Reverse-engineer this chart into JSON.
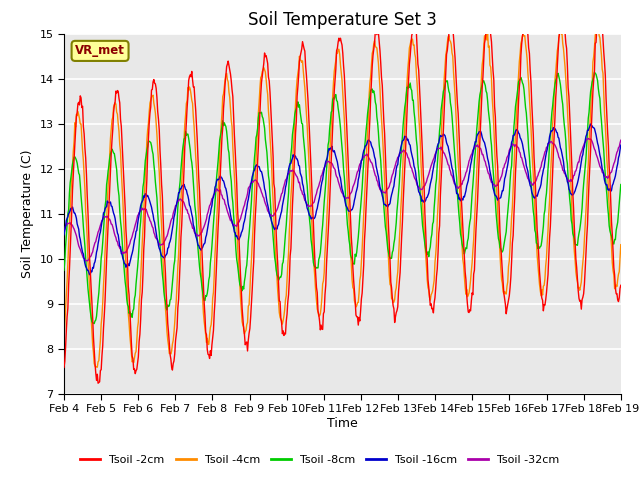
{
  "title": "Soil Temperature Set 3",
  "xlabel": "Time",
  "ylabel": "Soil Temperature (C)",
  "ylim": [
    7.0,
    15.0
  ],
  "yticks": [
    7.0,
    8.0,
    9.0,
    10.0,
    11.0,
    12.0,
    13.0,
    14.0,
    15.0
  ],
  "xtick_labels": [
    "Feb 4",
    "Feb 5",
    "Feb 6",
    "Feb 7",
    "Feb 8",
    "Feb 9",
    "Feb 10",
    "Feb 11",
    "Feb 12",
    "Feb 13",
    "Feb 14",
    "Feb 15",
    "Feb 16",
    "Feb 17",
    "Feb 18",
    "Feb 19"
  ],
  "legend_labels": [
    "Tsoil -2cm",
    "Tsoil -4cm",
    "Tsoil -8cm",
    "Tsoil -16cm",
    "Tsoil -32cm"
  ],
  "colors": [
    "#ff0000",
    "#ff8c00",
    "#00cc00",
    "#0000cc",
    "#aa00aa"
  ],
  "legend_label_box": "VR_met",
  "plot_bg_color": "#e8e8e8",
  "title_fontsize": 12,
  "axis_label_fontsize": 9,
  "tick_fontsize": 8
}
